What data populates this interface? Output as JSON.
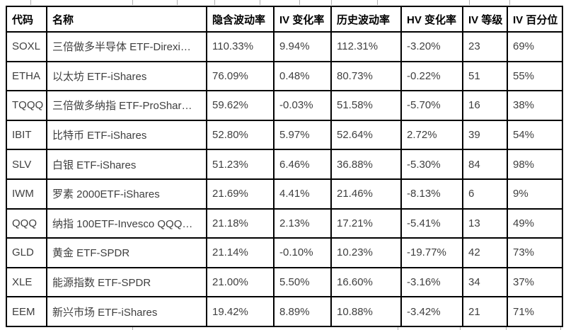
{
  "table": {
    "columns": [
      {
        "key": "code",
        "label": "代码"
      },
      {
        "key": "name",
        "label": "名称"
      },
      {
        "key": "iv",
        "label": "隐含波动率"
      },
      {
        "key": "iv_change",
        "label": "IV 变化率"
      },
      {
        "key": "hv",
        "label": "历史波动率"
      },
      {
        "key": "hv_change",
        "label": "HV 变化率"
      },
      {
        "key": "iv_rank",
        "label": "IV 等级"
      },
      {
        "key": "iv_percentile",
        "label": "IV 百分位"
      }
    ],
    "rows": [
      {
        "code": "SOXL",
        "name": "三倍做多半导体 ETF-Direxi…",
        "iv": "110.33%",
        "iv_change": "9.94%",
        "hv": "112.31%",
        "hv_change": "-3.20%",
        "iv_rank": "23",
        "iv_percentile": "69%"
      },
      {
        "code": "ETHA",
        "name": "以太坊 ETF-iShares",
        "iv": "76.09%",
        "iv_change": "0.48%",
        "hv": "80.73%",
        "hv_change": "-0.22%",
        "iv_rank": "51",
        "iv_percentile": "55%"
      },
      {
        "code": "TQQQ",
        "name": "三倍做多纳指 ETF-ProShar…",
        "iv": "59.62%",
        "iv_change": "-0.03%",
        "hv": "51.58%",
        "hv_change": "-5.70%",
        "iv_rank": "16",
        "iv_percentile": "38%"
      },
      {
        "code": "IBIT",
        "name": "比特币 ETF-iShares",
        "iv": "52.80%",
        "iv_change": "5.97%",
        "hv": "52.64%",
        "hv_change": "2.72%",
        "iv_rank": "39",
        "iv_percentile": "54%"
      },
      {
        "code": "SLV",
        "name": "白银 ETF-iShares",
        "iv": "51.23%",
        "iv_change": "6.46%",
        "hv": "36.88%",
        "hv_change": "-5.30%",
        "iv_rank": "84",
        "iv_percentile": "98%"
      },
      {
        "code": "IWM",
        "name": "罗素 2000ETF-iShares",
        "iv": "21.69%",
        "iv_change": "4.41%",
        "hv": "21.46%",
        "hv_change": "-8.13%",
        "iv_rank": "6",
        "iv_percentile": "9%"
      },
      {
        "code": "QQQ",
        "name": "纳指 100ETF-Invesco QQQ…",
        "iv": "21.18%",
        "iv_change": "2.13%",
        "hv": "17.21%",
        "hv_change": "-5.41%",
        "iv_rank": "13",
        "iv_percentile": "49%"
      },
      {
        "code": "GLD",
        "name": "黄金 ETF-SPDR",
        "iv": "21.14%",
        "iv_change": "-0.10%",
        "hv": "10.23%",
        "hv_change": "-19.77%",
        "iv_rank": "42",
        "iv_percentile": "73%"
      },
      {
        "code": "XLE",
        "name": "能源指数 ETF-SPDR",
        "iv": "21.00%",
        "iv_change": "5.50%",
        "hv": "16.60%",
        "hv_change": "-3.16%",
        "iv_rank": "34",
        "iv_percentile": "37%"
      },
      {
        "code": "EEM",
        "name": "新兴市场 ETF-iShares",
        "iv": "19.42%",
        "iv_change": "8.89%",
        "hv": "10.88%",
        "hv_change": "-3.42%",
        "iv_rank": "21",
        "iv_percentile": "71%"
      }
    ]
  },
  "colors": {
    "border": "#000000",
    "header_text": "#000000",
    "cell_text": "#3f3f3f",
    "crop_gridline": "#b0b0b0"
  }
}
